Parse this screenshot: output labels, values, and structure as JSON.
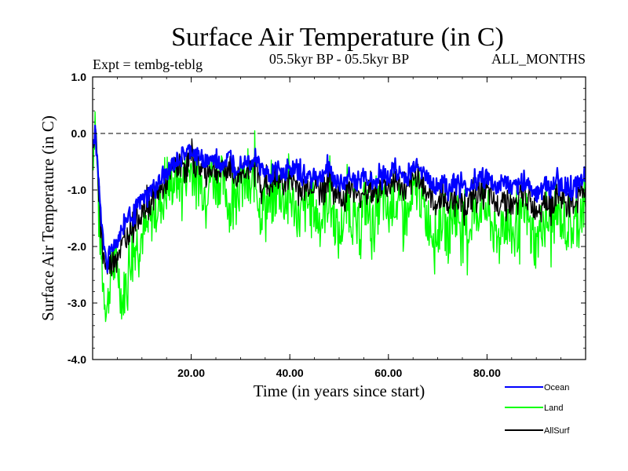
{
  "chart_data": {
    "type": "line",
    "title": "Surface Air Temperature (in C)",
    "subtitle_left": "Expt = tembg-teblg",
    "subtitle_center": "05.5kyr BP - 05.5kyr BP",
    "subtitle_right": "ALL_MONTHS",
    "xlabel": "Time (in years since start)",
    "ylabel": "Surface Air Temperature (in C)",
    "xlim": [
      0,
      100
    ],
    "ylim": [
      -4.0,
      1.0
    ],
    "xticks": [
      20,
      40,
      60,
      80
    ],
    "xtick_labels": [
      "20.00",
      "40.00",
      "60.00",
      "80.00"
    ],
    "yticks": [
      1.0,
      0.0,
      -1.0,
      -2.0,
      -3.0,
      -4.0
    ],
    "ytick_labels": [
      "1.0",
      "0.0",
      "-1.0",
      "-2.0",
      "-3.0",
      "-4.0"
    ],
    "reference_line": {
      "y": 0.0,
      "style": "dashed"
    },
    "legend_placement": "bottom-right",
    "x": [
      0,
      0.5,
      1,
      1.5,
      2,
      2.5,
      3,
      3.5,
      4,
      5,
      6,
      7,
      8,
      9,
      10,
      11,
      12,
      13,
      14,
      15,
      16,
      17,
      18,
      19,
      20,
      21,
      22,
      23,
      24,
      25,
      26,
      27,
      28,
      29,
      30,
      31,
      32,
      33,
      34,
      35,
      36,
      37,
      38,
      39,
      40,
      41,
      42,
      43,
      44,
      45,
      46,
      47,
      48,
      49,
      50,
      51,
      52,
      53,
      54,
      55,
      56,
      57,
      58,
      59,
      60,
      61,
      62,
      63,
      64,
      65,
      66,
      67,
      68,
      69,
      70,
      71,
      72,
      73,
      74,
      75,
      76,
      77,
      78,
      79,
      80,
      81,
      82,
      83,
      84,
      85,
      86,
      87,
      88,
      89,
      90,
      91,
      92,
      93,
      94,
      95,
      96,
      97,
      98,
      99,
      100
    ],
    "series": [
      {
        "name": "Ocean",
        "color": "#0000ff",
        "values": [
          -0.2,
          0.0,
          -0.5,
          -1.2,
          -1.8,
          -2.1,
          -2.2,
          -2.1,
          -2.0,
          -1.9,
          -1.7,
          -1.5,
          -1.4,
          -1.3,
          -1.2,
          -1.1,
          -1.0,
          -0.9,
          -0.85,
          -0.7,
          -0.6,
          -0.5,
          -0.4,
          -0.35,
          -0.3,
          -0.4,
          -0.4,
          -0.5,
          -0.45,
          -0.5,
          -0.55,
          -0.5,
          -0.4,
          -0.6,
          -0.5,
          -0.45,
          -0.5,
          -0.4,
          -0.6,
          -0.7,
          -0.75,
          -0.7,
          -0.65,
          -0.7,
          -0.6,
          -0.65,
          -0.7,
          -0.8,
          -0.75,
          -0.7,
          -0.8,
          -0.7,
          -0.6,
          -0.8,
          -0.85,
          -0.9,
          -0.7,
          -0.8,
          -0.9,
          -0.75,
          -0.8,
          -0.85,
          -0.8,
          -0.7,
          -0.8,
          -0.6,
          -0.7,
          -0.75,
          -0.8,
          -0.6,
          -0.5,
          -0.7,
          -0.8,
          -0.9,
          -0.95,
          -0.8,
          -1.0,
          -0.9,
          -0.85,
          -0.95,
          -1.0,
          -0.9,
          -0.85,
          -0.7,
          -0.8,
          -0.9,
          -1.0,
          -0.85,
          -0.9,
          -1.0,
          -0.95,
          -0.9,
          -0.85,
          -1.0,
          -1.05,
          -0.95,
          -0.9,
          -1.0,
          -0.85,
          -0.9,
          -0.95,
          -1.0,
          -0.9,
          -0.8,
          -0.7
        ]
      },
      {
        "name": "Land",
        "color": "#00ff00",
        "values": [
          -0.5,
          0.3,
          -0.8,
          -1.8,
          -2.5,
          -2.9,
          -3.1,
          -2.6,
          -2.4,
          -2.3,
          -3.0,
          -2.5,
          -2.1,
          -1.9,
          -1.8,
          -1.7,
          -1.5,
          -1.3,
          -1.2,
          -1.0,
          -0.9,
          -0.8,
          -0.9,
          -0.7,
          -0.6,
          -0.8,
          -0.9,
          -1.0,
          -0.7,
          -0.9,
          -0.8,
          -1.0,
          -1.4,
          -0.8,
          -1.0,
          -0.9,
          -1.1,
          -0.7,
          -1.4,
          -1.2,
          -1.3,
          -1.1,
          -1.0,
          -1.2,
          -1.1,
          -1.3,
          -1.5,
          -1.4,
          -1.2,
          -1.3,
          -1.6,
          -1.4,
          -1.1,
          -1.5,
          -1.9,
          -1.4,
          -1.3,
          -1.6,
          -1.8,
          -1.2,
          -1.4,
          -1.7,
          -1.3,
          -1.2,
          -1.5,
          -1.1,
          -1.3,
          -1.4,
          -1.5,
          -1.2,
          -0.9,
          -1.3,
          -1.5,
          -1.7,
          -1.8,
          -1.4,
          -1.9,
          -1.5,
          -1.4,
          -1.6,
          -1.8,
          -1.5,
          -1.4,
          -1.2,
          -1.4,
          -1.6,
          -2.0,
          -1.5,
          -1.6,
          -1.8,
          -1.7,
          -1.5,
          -1.4,
          -1.8,
          -2.0,
          -1.6,
          -1.5,
          -1.7,
          -1.4,
          -1.5,
          -1.6,
          -1.7,
          -1.6,
          -1.4,
          -1.3
        ]
      },
      {
        "name": "AllSurf",
        "color": "#000000",
        "values": [
          -0.3,
          0.1,
          -0.6,
          -1.4,
          -2.0,
          -2.3,
          -2.4,
          -2.3,
          -2.2,
          -2.1,
          -2.0,
          -1.8,
          -1.6,
          -1.5,
          -1.4,
          -1.3,
          -1.2,
          -1.05,
          -1.0,
          -0.85,
          -0.7,
          -0.6,
          -0.55,
          -0.5,
          -0.45,
          -0.55,
          -0.6,
          -0.7,
          -0.6,
          -0.65,
          -0.7,
          -0.65,
          -0.6,
          -0.8,
          -0.7,
          -0.6,
          -0.7,
          -0.55,
          -0.85,
          -0.9,
          -0.95,
          -0.85,
          -0.8,
          -0.9,
          -0.8,
          -0.85,
          -0.95,
          -1.0,
          -0.9,
          -0.9,
          -1.0,
          -0.9,
          -0.8,
          -1.0,
          -1.1,
          -1.1,
          -0.9,
          -1.0,
          -1.2,
          -0.95,
          -1.0,
          -1.1,
          -1.0,
          -0.9,
          -1.0,
          -0.8,
          -0.9,
          -1.0,
          -1.05,
          -0.85,
          -0.7,
          -0.95,
          -1.05,
          -1.2,
          -1.25,
          -1.05,
          -1.3,
          -1.15,
          -1.1,
          -1.2,
          -1.3,
          -1.15,
          -1.1,
          -0.95,
          -1.05,
          -1.2,
          -1.3,
          -1.1,
          -1.2,
          -1.3,
          -1.25,
          -1.15,
          -1.1,
          -1.3,
          -1.35,
          -1.2,
          -1.15,
          -1.3,
          -1.1,
          -1.15,
          -1.2,
          -1.3,
          -1.2,
          -1.05,
          -0.95
        ]
      }
    ]
  }
}
